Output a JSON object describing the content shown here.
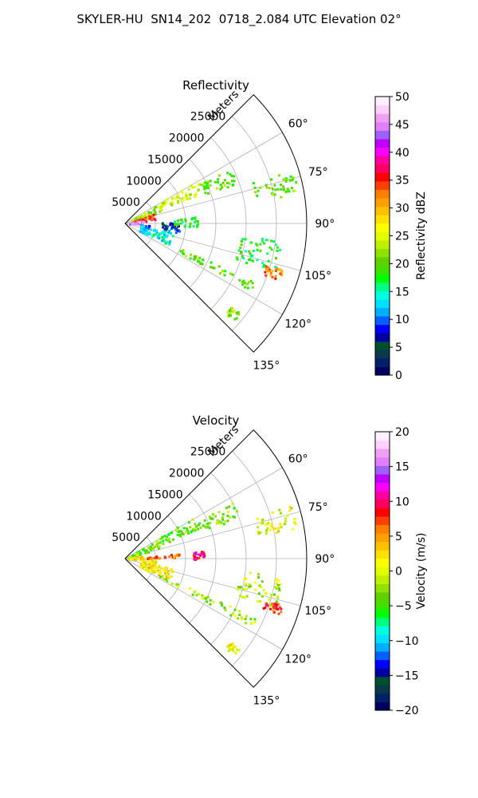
{
  "figure": {
    "title": "SKYLER-HU  SN14_202  0718_2.084 UTC Elevation 02°"
  },
  "chart_data": [
    {
      "type": "scatter",
      "projection": "polar-sector",
      "title": "Reflectivity",
      "radial_label": "Meters",
      "radial_ticks": [
        "5000",
        "10000",
        "15000",
        "20000",
        "25000"
      ],
      "radial_tick_values": [
        5000,
        10000,
        15000,
        20000,
        25000
      ],
      "radial_max": 30000,
      "azimuth_ticks": [
        "60°",
        "75°",
        "90°",
        "105°",
        "120°",
        "135°"
      ],
      "azimuth_tick_values": [
        60,
        75,
        90,
        105,
        120,
        135
      ],
      "azimuth_range": [
        45,
        135
      ],
      "grid": true,
      "colorbar": {
        "label": "Reflectivity dBZ",
        "ticks": [
          "0",
          "5",
          "10",
          "15",
          "20",
          "25",
          "30",
          "35",
          "40",
          "45",
          "50"
        ],
        "range": [
          0,
          50
        ],
        "colors": [
          "#000060",
          "#00206a",
          "#0a3a4a",
          "#005030",
          "#0000a0",
          "#0000ff",
          "#0060ff",
          "#00b0ff",
          "#00e0ff",
          "#00ffe0",
          "#00ff80",
          "#00ff00",
          "#40e000",
          "#60d000",
          "#90e000",
          "#c0f000",
          "#e0ff00",
          "#ffff00",
          "#ffe000",
          "#ffc000",
          "#ffa000",
          "#ff8000",
          "#ff4000",
          "#ff0000",
          "#ff0060",
          "#ff00a0",
          "#ff00ff",
          "#c000ff",
          "#a060ff",
          "#e080ff",
          "#f0a0f0",
          "#ffd0ff",
          "#fff0ff"
        ]
      },
      "echo_regions": [
        {
          "az": [
            58,
            72
          ],
          "range": [
            500,
            6000
          ],
          "value": 22
        },
        {
          "az": [
            58,
            68
          ],
          "range": [
            6000,
            14000
          ],
          "value": 24
        },
        {
          "az": [
            62,
            70
          ],
          "range": [
            14000,
            20000
          ],
          "value": 20
        },
        {
          "az": [
            70,
            82
          ],
          "range": [
            1000,
            5000
          ],
          "value": 35
        },
        {
          "az": [
            78,
            90
          ],
          "range": [
            500,
            3000
          ],
          "value": 45
        },
        {
          "az": [
            92,
            118
          ],
          "range": [
            2500,
            4000
          ],
          "value": 12
        },
        {
          "az": [
            88,
            100
          ],
          "range": [
            6000,
            9000
          ],
          "value": 8
        },
        {
          "az": [
            100,
            115
          ],
          "range": [
            4000,
            8000
          ],
          "value": 14
        },
        {
          "az": [
            114,
            118
          ],
          "range": [
            6000,
            24000
          ],
          "value": 20
        },
        {
          "az": [
            96,
            108
          ],
          "range": [
            19000,
            26000
          ],
          "value": 18
        },
        {
          "az": [
            106,
            110
          ],
          "range": [
            24000,
            27000
          ],
          "value": 32
        },
        {
          "az": [
            72,
            80
          ],
          "range": [
            22000,
            29000
          ],
          "value": 20
        },
        {
          "az": [
            128,
            132
          ],
          "range": [
            22000,
            24000
          ],
          "value": 22
        },
        {
          "az": [
            84,
            92
          ],
          "range": [
            8000,
            12000
          ],
          "value": 18
        }
      ]
    },
    {
      "type": "scatter",
      "projection": "polar-sector",
      "title": "Velocity",
      "radial_label": "Meters",
      "radial_ticks": [
        "5000",
        "10000",
        "15000",
        "20000",
        "25000"
      ],
      "radial_tick_values": [
        5000,
        10000,
        15000,
        20000,
        25000
      ],
      "radial_max": 30000,
      "azimuth_ticks": [
        "60°",
        "75°",
        "90°",
        "105°",
        "120°",
        "135°"
      ],
      "azimuth_tick_values": [
        60,
        75,
        90,
        105,
        120,
        135
      ],
      "azimuth_range": [
        45,
        135
      ],
      "grid": true,
      "colorbar": {
        "label": "Velocity (m/s)",
        "ticks": [
          "−20",
          "−15",
          "−10",
          "−5",
          "0",
          "5",
          "10",
          "15",
          "20"
        ],
        "range": [
          -20,
          20
        ],
        "colors": [
          "#000060",
          "#00206a",
          "#0a3a4a",
          "#005030",
          "#0000a0",
          "#0000ff",
          "#0060ff",
          "#00b0ff",
          "#00e0ff",
          "#00ffe0",
          "#00ff80",
          "#00ff00",
          "#40e000",
          "#60d000",
          "#90e000",
          "#c0f000",
          "#e0ff00",
          "#ffff00",
          "#ffe000",
          "#ffc000",
          "#ffa000",
          "#ff8000",
          "#ff4000",
          "#ff0000",
          "#ff0060",
          "#ff00a0",
          "#ff00ff",
          "#c000ff",
          "#a060ff",
          "#e080ff",
          "#f0a0f0",
          "#ffd0ff",
          "#fff0ff"
        ]
      },
      "echo_regions": [
        {
          "az": [
            58,
            72
          ],
          "range": [
            500,
            6000
          ],
          "value": -3
        },
        {
          "az": [
            58,
            68
          ],
          "range": [
            6000,
            14000
          ],
          "value": -4
        },
        {
          "az": [
            62,
            70
          ],
          "range": [
            14000,
            20000
          ],
          "value": -3
        },
        {
          "az": [
            78,
            92
          ],
          "range": [
            500,
            3000
          ],
          "value": 2
        },
        {
          "az": [
            84,
            88
          ],
          "range": [
            3500,
            9000
          ],
          "value": 7
        },
        {
          "az": [
            92,
            118
          ],
          "range": [
            2500,
            5000
          ],
          "value": 1
        },
        {
          "az": [
            100,
            115
          ],
          "range": [
            4000,
            8000
          ],
          "value": 2
        },
        {
          "az": [
            114,
            118
          ],
          "range": [
            6000,
            24000
          ],
          "value": -2
        },
        {
          "az": [
            96,
            108
          ],
          "range": [
            19000,
            26000
          ],
          "value": -1
        },
        {
          "az": [
            106,
            110
          ],
          "range": [
            24000,
            27000
          ],
          "value": 8
        },
        {
          "az": [
            72,
            80
          ],
          "range": [
            22000,
            29000
          ],
          "value": 0
        },
        {
          "az": [
            84,
            90
          ],
          "range": [
            11000,
            13000
          ],
          "value": 10
        },
        {
          "az": [
            128,
            132
          ],
          "range": [
            22000,
            24000
          ],
          "value": 1
        }
      ]
    }
  ]
}
